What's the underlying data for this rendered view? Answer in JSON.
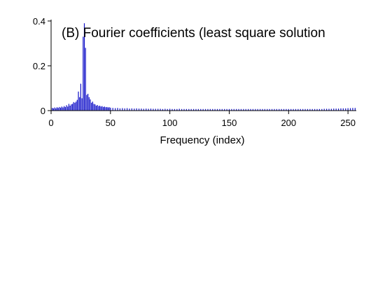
{
  "chart_data": {
    "type": "bar",
    "title": "(B) Fourier coefficients (least square solution",
    "xlabel": "Frequency (index)",
    "ylabel": "",
    "xlim": [
      0,
      257
    ],
    "ylim": [
      0,
      0.4
    ],
    "x_ticks": [
      "0",
      "50",
      "100",
      "150",
      "200",
      "250"
    ],
    "y_ticks": [
      "0",
      "0.2",
      "0.4"
    ],
    "grid": false,
    "legend": "none",
    "bar_color": "#1010c8",
    "series": [
      {
        "x": [
          1,
          2,
          3,
          4,
          5,
          6,
          7,
          8,
          9,
          10,
          11,
          12,
          13,
          14,
          15,
          16,
          17,
          18,
          19,
          20,
          21,
          22,
          23,
          24,
          25,
          26,
          27,
          28,
          29,
          30,
          31,
          32,
          33,
          34,
          35,
          36,
          37,
          38,
          39,
          40,
          41,
          42,
          43,
          44,
          45,
          46,
          47,
          48,
          49,
          50,
          52,
          54,
          56,
          58,
          60,
          62,
          64,
          66,
          68,
          70,
          72,
          74,
          76,
          78,
          80,
          82,
          84,
          86,
          88,
          90,
          92,
          94,
          96,
          98,
          100,
          102,
          104,
          106,
          108,
          110,
          112,
          114,
          116,
          118,
          120,
          122,
          124,
          126,
          128,
          130,
          132,
          134,
          136,
          138,
          140,
          142,
          144,
          146,
          148,
          150,
          152,
          154,
          156,
          158,
          160,
          162,
          164,
          166,
          168,
          170,
          172,
          174,
          176,
          178,
          180,
          182,
          184,
          186,
          188,
          190,
          192,
          194,
          196,
          198,
          200,
          202,
          204,
          206,
          208,
          210,
          212,
          214,
          216,
          218,
          220,
          222,
          224,
          226,
          228,
          230,
          232,
          234,
          236,
          238,
          240,
          242,
          244,
          246,
          248,
          250,
          252,
          254,
          256
        ],
        "values": [
          0.012,
          0.01,
          0.014,
          0.01,
          0.015,
          0.012,
          0.016,
          0.013,
          0.018,
          0.014,
          0.02,
          0.016,
          0.024,
          0.018,
          0.03,
          0.022,
          0.028,
          0.03,
          0.038,
          0.035,
          0.04,
          0.048,
          0.085,
          0.06,
          0.12,
          0.055,
          0.33,
          0.39,
          0.28,
          0.07,
          0.075,
          0.06,
          0.05,
          0.035,
          0.04,
          0.03,
          0.028,
          0.022,
          0.025,
          0.02,
          0.022,
          0.018,
          0.02,
          0.016,
          0.018,
          0.015,
          0.016,
          0.014,
          0.015,
          0.013,
          0.012,
          0.011,
          0.012,
          0.01,
          0.011,
          0.01,
          0.011,
          0.009,
          0.01,
          0.009,
          0.01,
          0.009,
          0.009,
          0.008,
          0.009,
          0.008,
          0.009,
          0.008,
          0.008,
          0.008,
          0.008,
          0.007,
          0.008,
          0.007,
          0.008,
          0.007,
          0.007,
          0.007,
          0.008,
          0.007,
          0.007,
          0.007,
          0.007,
          0.007,
          0.007,
          0.007,
          0.007,
          0.007,
          0.007,
          0.007,
          0.007,
          0.007,
          0.007,
          0.007,
          0.007,
          0.007,
          0.007,
          0.007,
          0.007,
          0.007,
          0.007,
          0.007,
          0.007,
          0.007,
          0.007,
          0.007,
          0.007,
          0.007,
          0.007,
          0.007,
          0.007,
          0.007,
          0.007,
          0.007,
          0.007,
          0.007,
          0.007,
          0.007,
          0.007,
          0.007,
          0.007,
          0.007,
          0.007,
          0.007,
          0.007,
          0.007,
          0.007,
          0.007,
          0.007,
          0.007,
          0.007,
          0.007,
          0.007,
          0.007,
          0.007,
          0.007,
          0.007,
          0.007,
          0.007,
          0.008,
          0.008,
          0.008,
          0.008,
          0.009,
          0.009,
          0.009,
          0.01,
          0.01,
          0.01,
          0.011,
          0.011,
          0.012,
          0.012
        ]
      }
    ]
  }
}
